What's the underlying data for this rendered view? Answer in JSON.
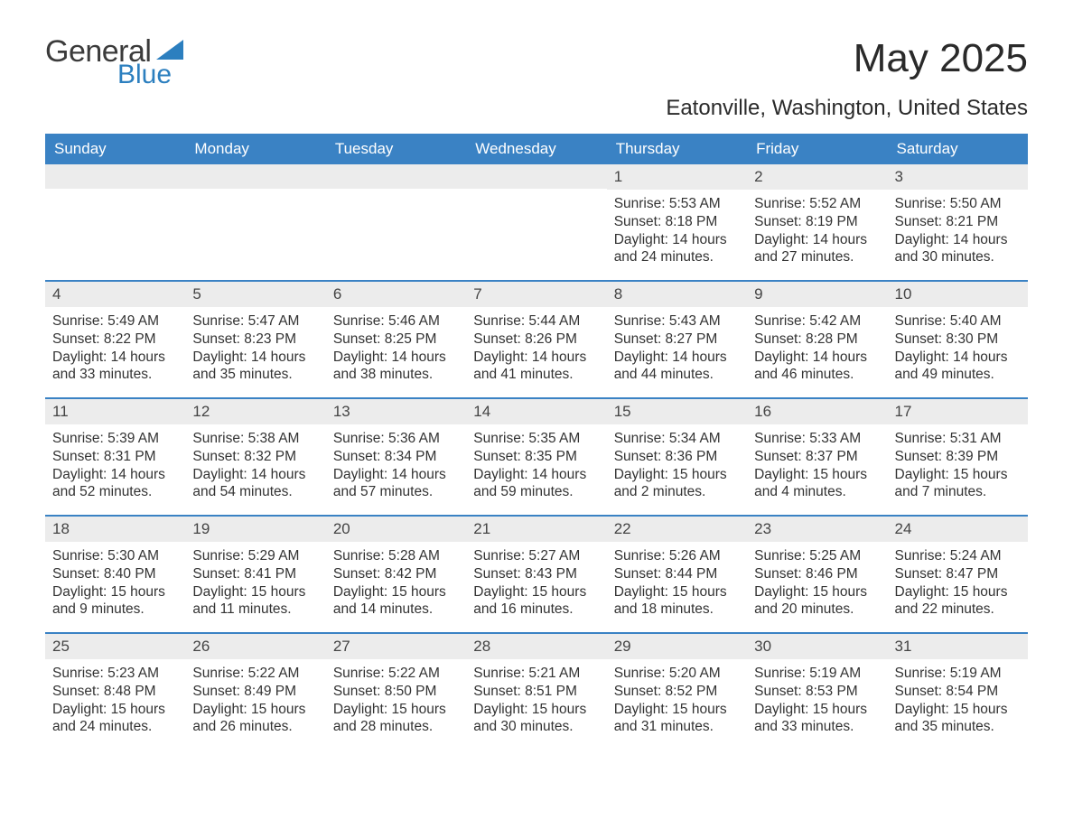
{
  "logo": {
    "text1": "General",
    "text2": "Blue",
    "sail_color": "#2c7fbf"
  },
  "title": "May 2025",
  "location": "Eatonville, Washington, United States",
  "colors": {
    "header_bg": "#3a82c4",
    "header_text": "#ffffff",
    "daynum_bg": "#ececec",
    "week_divider": "#3a82c4",
    "body_text": "#333333"
  },
  "daynames": [
    "Sunday",
    "Monday",
    "Tuesday",
    "Wednesday",
    "Thursday",
    "Friday",
    "Saturday"
  ],
  "labels": {
    "sunrise": "Sunrise:",
    "sunset": "Sunset:",
    "daylight": "Daylight:"
  },
  "weeks": [
    [
      null,
      null,
      null,
      null,
      {
        "n": "1",
        "sr": "5:53 AM",
        "ss": "8:18 PM",
        "dl": "14 hours and 24 minutes."
      },
      {
        "n": "2",
        "sr": "5:52 AM",
        "ss": "8:19 PM",
        "dl": "14 hours and 27 minutes."
      },
      {
        "n": "3",
        "sr": "5:50 AM",
        "ss": "8:21 PM",
        "dl": "14 hours and 30 minutes."
      }
    ],
    [
      {
        "n": "4",
        "sr": "5:49 AM",
        "ss": "8:22 PM",
        "dl": "14 hours and 33 minutes."
      },
      {
        "n": "5",
        "sr": "5:47 AM",
        "ss": "8:23 PM",
        "dl": "14 hours and 35 minutes."
      },
      {
        "n": "6",
        "sr": "5:46 AM",
        "ss": "8:25 PM",
        "dl": "14 hours and 38 minutes."
      },
      {
        "n": "7",
        "sr": "5:44 AM",
        "ss": "8:26 PM",
        "dl": "14 hours and 41 minutes."
      },
      {
        "n": "8",
        "sr": "5:43 AM",
        "ss": "8:27 PM",
        "dl": "14 hours and 44 minutes."
      },
      {
        "n": "9",
        "sr": "5:42 AM",
        "ss": "8:28 PM",
        "dl": "14 hours and 46 minutes."
      },
      {
        "n": "10",
        "sr": "5:40 AM",
        "ss": "8:30 PM",
        "dl": "14 hours and 49 minutes."
      }
    ],
    [
      {
        "n": "11",
        "sr": "5:39 AM",
        "ss": "8:31 PM",
        "dl": "14 hours and 52 minutes."
      },
      {
        "n": "12",
        "sr": "5:38 AM",
        "ss": "8:32 PM",
        "dl": "14 hours and 54 minutes."
      },
      {
        "n": "13",
        "sr": "5:36 AM",
        "ss": "8:34 PM",
        "dl": "14 hours and 57 minutes."
      },
      {
        "n": "14",
        "sr": "5:35 AM",
        "ss": "8:35 PM",
        "dl": "14 hours and 59 minutes."
      },
      {
        "n": "15",
        "sr": "5:34 AM",
        "ss": "8:36 PM",
        "dl": "15 hours and 2 minutes."
      },
      {
        "n": "16",
        "sr": "5:33 AM",
        "ss": "8:37 PM",
        "dl": "15 hours and 4 minutes."
      },
      {
        "n": "17",
        "sr": "5:31 AM",
        "ss": "8:39 PM",
        "dl": "15 hours and 7 minutes."
      }
    ],
    [
      {
        "n": "18",
        "sr": "5:30 AM",
        "ss": "8:40 PM",
        "dl": "15 hours and 9 minutes."
      },
      {
        "n": "19",
        "sr": "5:29 AM",
        "ss": "8:41 PM",
        "dl": "15 hours and 11 minutes."
      },
      {
        "n": "20",
        "sr": "5:28 AM",
        "ss": "8:42 PM",
        "dl": "15 hours and 14 minutes."
      },
      {
        "n": "21",
        "sr": "5:27 AM",
        "ss": "8:43 PM",
        "dl": "15 hours and 16 minutes."
      },
      {
        "n": "22",
        "sr": "5:26 AM",
        "ss": "8:44 PM",
        "dl": "15 hours and 18 minutes."
      },
      {
        "n": "23",
        "sr": "5:25 AM",
        "ss": "8:46 PM",
        "dl": "15 hours and 20 minutes."
      },
      {
        "n": "24",
        "sr": "5:24 AM",
        "ss": "8:47 PM",
        "dl": "15 hours and 22 minutes."
      }
    ],
    [
      {
        "n": "25",
        "sr": "5:23 AM",
        "ss": "8:48 PM",
        "dl": "15 hours and 24 minutes."
      },
      {
        "n": "26",
        "sr": "5:22 AM",
        "ss": "8:49 PM",
        "dl": "15 hours and 26 minutes."
      },
      {
        "n": "27",
        "sr": "5:22 AM",
        "ss": "8:50 PM",
        "dl": "15 hours and 28 minutes."
      },
      {
        "n": "28",
        "sr": "5:21 AM",
        "ss": "8:51 PM",
        "dl": "15 hours and 30 minutes."
      },
      {
        "n": "29",
        "sr": "5:20 AM",
        "ss": "8:52 PM",
        "dl": "15 hours and 31 minutes."
      },
      {
        "n": "30",
        "sr": "5:19 AM",
        "ss": "8:53 PM",
        "dl": "15 hours and 33 minutes."
      },
      {
        "n": "31",
        "sr": "5:19 AM",
        "ss": "8:54 PM",
        "dl": "15 hours and 35 minutes."
      }
    ]
  ]
}
